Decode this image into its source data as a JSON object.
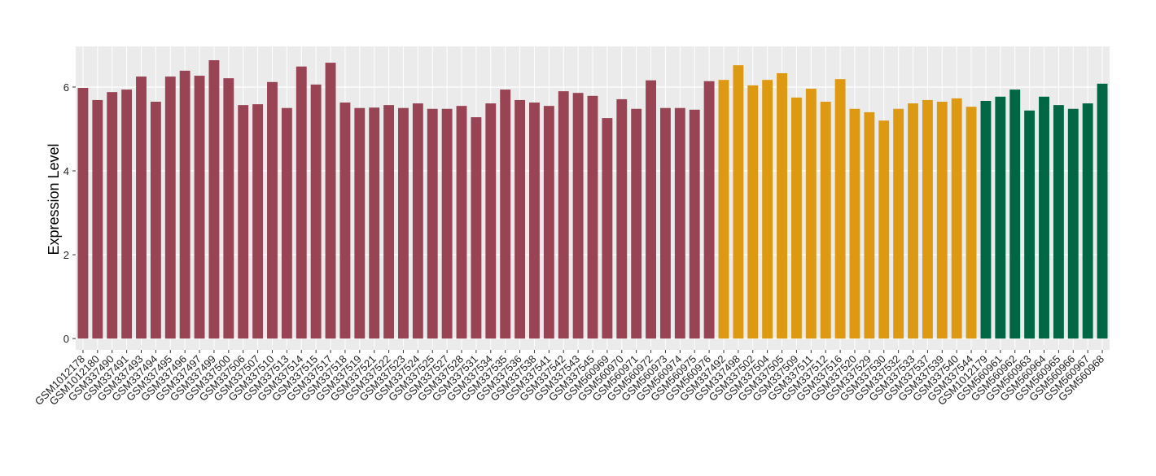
{
  "chart_data": {
    "type": "bar",
    "y_label": "Expression Level",
    "categories": [
      "GSM1012178",
      "GSM1012180",
      "GSM337490",
      "GSM337491",
      "GSM337493",
      "GSM337494",
      "GSM337495",
      "GSM337496",
      "GSM337497",
      "GSM337499",
      "GSM337500",
      "GSM337506",
      "GSM337507",
      "GSM337510",
      "GSM337513",
      "GSM337514",
      "GSM337515",
      "GSM337517",
      "GSM337518",
      "GSM337519",
      "GSM337521",
      "GSM337522",
      "GSM337523",
      "GSM337524",
      "GSM337525",
      "GSM337527",
      "GSM337528",
      "GSM337531",
      "GSM337534",
      "GSM337535",
      "GSM337536",
      "GSM337538",
      "GSM337541",
      "GSM337542",
      "GSM337543",
      "GSM337545",
      "GSM560969",
      "GSM560970",
      "GSM560971",
      "GSM560972",
      "GSM560973",
      "GSM560974",
      "GSM560975",
      "GSM560976",
      "GSM337492",
      "GSM337498",
      "GSM337502",
      "GSM337504",
      "GSM337505",
      "GSM337509",
      "GSM337511",
      "GSM337512",
      "GSM337516",
      "GSM337520",
      "GSM337529",
      "GSM337530",
      "GSM337532",
      "GSM337533",
      "GSM337537",
      "GSM337539",
      "GSM337540",
      "GSM337544",
      "GSM1012179",
      "GSM560961",
      "GSM560962",
      "GSM560963",
      "GSM560964",
      "GSM560965",
      "GSM560966",
      "GSM560967",
      "GSM560968"
    ],
    "values": [
      5.98,
      5.69,
      5.88,
      5.94,
      6.25,
      5.65,
      6.25,
      6.39,
      6.27,
      6.64,
      6.21,
      5.57,
      5.59,
      6.12,
      5.5,
      6.49,
      6.06,
      6.58,
      5.63,
      5.5,
      5.51,
      5.57,
      5.5,
      5.61,
      5.48,
      5.48,
      5.55,
      5.28,
      5.61,
      5.94,
      5.69,
      5.63,
      5.55,
      5.9,
      5.86,
      5.79,
      5.26,
      5.71,
      5.48,
      6.16,
      5.5,
      5.5,
      5.46,
      6.14,
      6.17,
      6.52,
      6.04,
      6.17,
      6.33,
      5.75,
      5.96,
      5.65,
      6.19,
      5.48,
      5.4,
      5.2,
      5.48,
      5.61,
      5.69,
      5.65,
      5.73,
      5.53,
      5.67,
      5.77,
      5.94,
      5.44,
      5.77,
      5.57,
      5.48,
      5.61,
      6.08
    ],
    "colors": [
      "#994455",
      "#994455",
      "#994455",
      "#994455",
      "#994455",
      "#994455",
      "#994455",
      "#994455",
      "#994455",
      "#994455",
      "#994455",
      "#994455",
      "#994455",
      "#994455",
      "#994455",
      "#994455",
      "#994455",
      "#994455",
      "#994455",
      "#994455",
      "#994455",
      "#994455",
      "#994455",
      "#994455",
      "#994455",
      "#994455",
      "#994455",
      "#994455",
      "#994455",
      "#994455",
      "#994455",
      "#994455",
      "#994455",
      "#994455",
      "#994455",
      "#994455",
      "#994455",
      "#994455",
      "#994455",
      "#994455",
      "#994455",
      "#994455",
      "#994455",
      "#994455",
      "#dd9911",
      "#dd9911",
      "#dd9911",
      "#dd9911",
      "#dd9911",
      "#dd9911",
      "#dd9911",
      "#dd9911",
      "#dd9911",
      "#dd9911",
      "#dd9911",
      "#dd9911",
      "#dd9911",
      "#dd9911",
      "#dd9911",
      "#dd9911",
      "#dd9911",
      "#dd9911",
      "#006644",
      "#006644",
      "#006644",
      "#006644",
      "#006644",
      "#006644",
      "#006644",
      "#006644",
      "#006644"
    ],
    "ylim": [
      -0.27,
      6.97
    ],
    "yticks": [
      0,
      2,
      4,
      6
    ],
    "grid": true
  }
}
